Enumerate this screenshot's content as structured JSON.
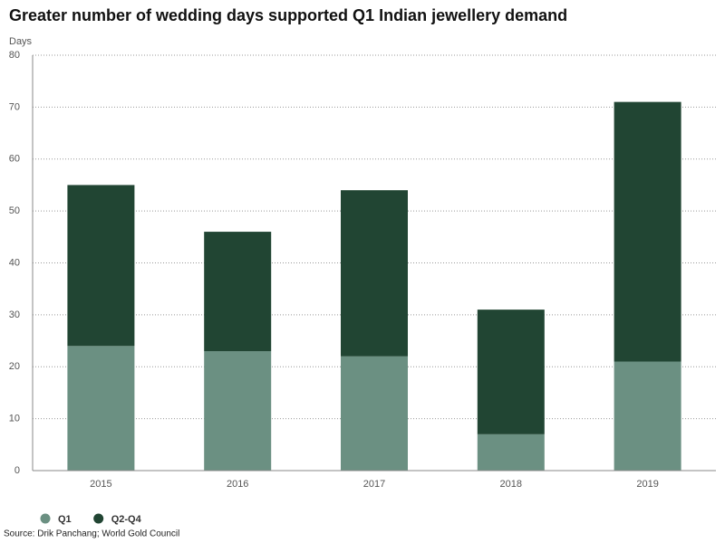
{
  "chart_data": {
    "type": "stacked_bar",
    "title": "Greater number of wedding days supported Q1 Indian jewellery demand",
    "y_label": "Days",
    "categories": [
      "2015",
      "2016",
      "2017",
      "2018",
      "2019"
    ],
    "series": [
      {
        "name": "Q1",
        "color": "#6b9082",
        "values": [
          24,
          23,
          22,
          7,
          21
        ]
      },
      {
        "name": "Q2-Q4",
        "color": "#214533",
        "values": [
          31,
          23,
          32,
          24,
          50
        ]
      }
    ],
    "ylim": [
      0,
      80
    ],
    "yticks": [
      0,
      10,
      20,
      30,
      40,
      50,
      60,
      70,
      80
    ],
    "grid": true,
    "source": "Source: Drik Panchang; World Gold Council"
  }
}
